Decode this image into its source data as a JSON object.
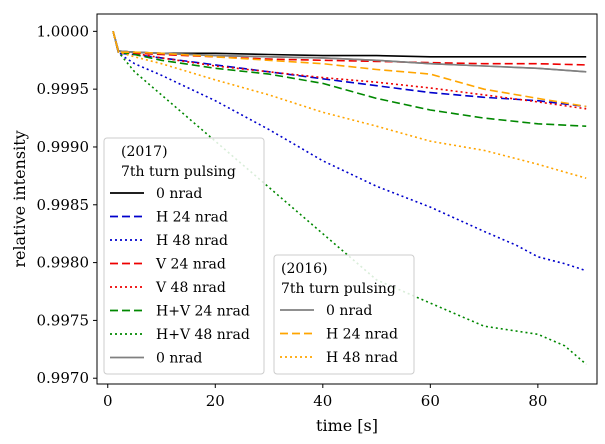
{
  "chart_data": {
    "type": "line",
    "title": "",
    "xlabel": "time [s]",
    "ylabel": "relative intensity",
    "xlim": [
      -2,
      91
    ],
    "ylim": [
      0.99695,
      1.00015
    ],
    "xticks": [
      0,
      20,
      40,
      60,
      80
    ],
    "yticks": [
      0.997,
      0.9975,
      0.998,
      0.9985,
      0.999,
      0.9995,
      1.0
    ],
    "ytick_labels": [
      "0.9970",
      "0.9975",
      "0.9980",
      "0.9985",
      "0.9990",
      "0.9995",
      "1.0000"
    ],
    "grid": false,
    "legends": [
      {
        "title_lines": [
          "(2017)",
          "7th turn pulsing"
        ],
        "placement": "center-left",
        "series": [
          0,
          1,
          2,
          3,
          4,
          5,
          6,
          7
        ]
      },
      {
        "title_lines": [
          "(2016)",
          "7th turn pulsing"
        ],
        "placement": "lower-center",
        "series": [
          8,
          9,
          10
        ]
      }
    ],
    "series": [
      {
        "name": "0 nrad",
        "group": "2017",
        "color": "#000000",
        "style": "solid",
        "x": [
          1,
          2,
          5,
          10,
          20,
          30,
          40,
          50,
          60,
          70,
          80,
          89
        ],
        "y": [
          1.0,
          0.99983,
          0.99982,
          0.99981,
          0.99981,
          0.9998,
          0.99979,
          0.99979,
          0.99978,
          0.99978,
          0.99978,
          0.99978
        ]
      },
      {
        "name": "H 24 nrad",
        "group": "2017",
        "color": "#0000cc",
        "style": "dashed",
        "x": [
          1,
          2,
          5,
          10,
          20,
          30,
          40,
          50,
          60,
          70,
          80,
          89
        ],
        "y": [
          1.0,
          0.99981,
          0.9998,
          0.99977,
          0.99971,
          0.99965,
          0.99959,
          0.99953,
          0.99947,
          0.99943,
          0.9994,
          0.99935
        ]
      },
      {
        "name": "H 48 nrad",
        "group": "2017",
        "color": "#0000cc",
        "style": "dotted",
        "x": [
          1,
          2,
          5,
          10,
          20,
          30,
          40,
          50,
          60,
          70,
          76,
          80,
          85,
          89
        ],
        "y": [
          1.0,
          0.99981,
          0.99972,
          0.99962,
          0.9994,
          0.99915,
          0.99888,
          0.99866,
          0.99848,
          0.99827,
          0.99815,
          0.99805,
          0.99799,
          0.99793
        ]
      },
      {
        "name": "V 24 nrad",
        "group": "2017",
        "color": "#ee0000",
        "style": "dashed",
        "x": [
          1,
          2,
          5,
          10,
          20,
          30,
          40,
          50,
          60,
          70,
          80,
          89
        ],
        "y": [
          1.0,
          0.99982,
          0.99981,
          0.9998,
          0.99978,
          0.99976,
          0.99975,
          0.99974,
          0.99973,
          0.99972,
          0.99972,
          0.99971
        ]
      },
      {
        "name": "V 48 nrad",
        "group": "2017",
        "color": "#ee0000",
        "style": "dotted",
        "x": [
          1,
          2,
          5,
          10,
          20,
          30,
          40,
          50,
          60,
          70,
          80,
          89
        ],
        "y": [
          1.0,
          0.99983,
          0.99981,
          0.99977,
          0.9997,
          0.99965,
          0.9996,
          0.99956,
          0.99951,
          0.99945,
          0.99939,
          0.99933
        ]
      },
      {
        "name": "H+V 24 nrad",
        "group": "2017",
        "color": "#008800",
        "style": "dashed",
        "x": [
          1,
          2,
          5,
          10,
          20,
          30,
          40,
          50,
          60,
          70,
          80,
          89
        ],
        "y": [
          1.0,
          0.99982,
          0.9998,
          0.99975,
          0.99968,
          0.99963,
          0.99955,
          0.99942,
          0.99932,
          0.99925,
          0.9992,
          0.99918
        ]
      },
      {
        "name": "H+V 48 nrad",
        "group": "2017",
        "color": "#008800",
        "style": "dotted",
        "x": [
          1,
          2,
          5,
          10,
          20,
          30,
          40,
          50,
          60,
          70,
          80,
          85,
          89
        ],
        "y": [
          1.0,
          0.99982,
          0.99965,
          0.99945,
          0.99905,
          0.99865,
          0.99825,
          0.99785,
          0.99765,
          0.99745,
          0.99738,
          0.99728,
          0.99712
        ]
      },
      {
        "name": "0 nrad",
        "group": "2017",
        "color": "#808080",
        "style": "solid",
        "x": [
          1,
          2,
          5,
          10,
          20,
          30,
          40,
          50,
          60,
          70,
          80,
          89
        ],
        "y": [
          1.0,
          0.99983,
          0.99982,
          0.99981,
          0.99979,
          0.99978,
          0.99977,
          0.99975,
          0.99972,
          0.9997,
          0.99968,
          0.99965
        ]
      },
      {
        "name": "0 nrad",
        "group": "2016",
        "color": "#808080",
        "style": "solid",
        "x": [
          1,
          2,
          5,
          10,
          20,
          30,
          40,
          50,
          60,
          70,
          80,
          89
        ],
        "y": [
          1.0,
          0.99983,
          0.99982,
          0.99981,
          0.99979,
          0.99978,
          0.99977,
          0.99975,
          0.99972,
          0.9997,
          0.99968,
          0.99965
        ]
      },
      {
        "name": "H 24 nrad",
        "group": "2016",
        "color": "#ffa500",
        "style": "dashed",
        "x": [
          1,
          2,
          5,
          10,
          20,
          30,
          40,
          50,
          60,
          70,
          80,
          89
        ],
        "y": [
          1.0,
          0.99982,
          0.99982,
          0.99981,
          0.99978,
          0.99975,
          0.99972,
          0.99967,
          0.99963,
          0.9995,
          0.99942,
          0.99935
        ]
      },
      {
        "name": "H 48 nrad",
        "group": "2016",
        "color": "#ffa500",
        "style": "dotted",
        "x": [
          1,
          2,
          5,
          10,
          20,
          30,
          40,
          50,
          60,
          70,
          80,
          89
        ],
        "y": [
          1.0,
          0.99982,
          0.99978,
          0.99972,
          0.99958,
          0.99945,
          0.9993,
          0.99918,
          0.99905,
          0.99897,
          0.99885,
          0.99873
        ]
      }
    ]
  }
}
